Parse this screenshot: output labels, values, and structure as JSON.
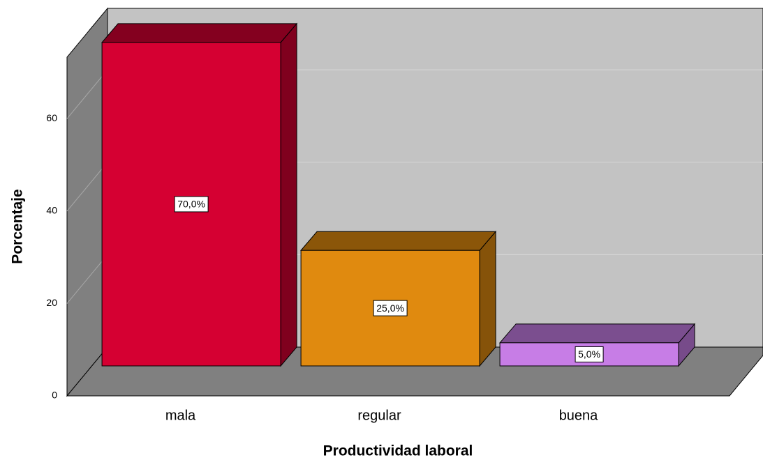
{
  "chart_data": {
    "type": "bar3d",
    "categories": [
      "mala",
      "regular",
      "buena"
    ],
    "values": [
      70,
      25,
      5
    ],
    "value_labels": [
      "70,0%",
      "25,0%",
      "5,0%"
    ],
    "colors": [
      "#d50032",
      "#e08a0f",
      "#c77de6"
    ],
    "xlabel": "Productividad laboral",
    "ylabel": "Porcentaje",
    "ylim": [
      0,
      73.3
    ],
    "yticks": [
      0,
      20,
      40,
      60
    ],
    "grid": true
  }
}
